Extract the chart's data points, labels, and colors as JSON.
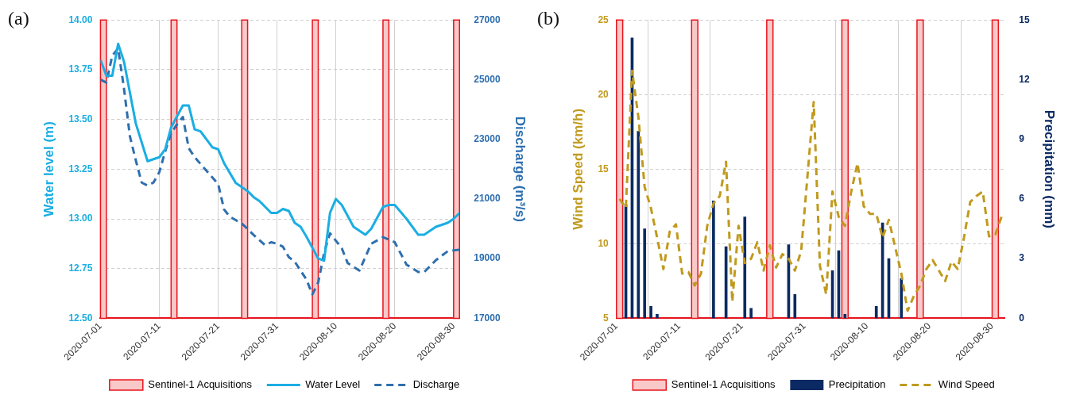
{
  "chart_data": [
    {
      "type": "line",
      "title": "(a)",
      "ylabel": "Water level (m)",
      "y2label": "Discharge (m³/s)",
      "xlim": [
        "2020-07-01",
        "2020-08-31"
      ],
      "xticks": [
        "2020-07-01",
        "2020-07-11",
        "2020-07-21",
        "2020-07-31",
        "2020-08-10",
        "2020-08-20",
        "2020-08-30"
      ],
      "ylim": [
        12.5,
        14
      ],
      "yticks": [
        {
          "value": 12.5,
          "label": "12.50"
        },
        12.75,
        {
          "value": 13,
          "label": "13.00"
        },
        13.25,
        {
          "value": 13.5,
          "label": "13.50"
        },
        13.75,
        {
          "value": 14,
          "label": "14.00"
        }
      ],
      "y2lim": [
        17000,
        27000
      ],
      "y2ticks": [
        17000,
        19000,
        21000,
        23000,
        25000,
        27000
      ],
      "grid": true,
      "legend": "bottom",
      "marker": "none",
      "bands": [
        {
          "axis": "x",
          "from": "2020-07-01",
          "to": "2020-07-02",
          "label": "Sentinel-1 Acquisitions",
          "color": "#f9c9c9"
        },
        {
          "axis": "x",
          "from": "2020-07-13",
          "to": "2020-07-14",
          "color": "#f9c9c9"
        },
        {
          "axis": "x",
          "from": "2020-07-25",
          "to": "2020-07-26",
          "color": "#f9c9c9"
        },
        {
          "axis": "x",
          "from": "2020-08-06",
          "to": "2020-08-07",
          "color": "#f9c9c9"
        },
        {
          "axis": "x",
          "from": "2020-08-18",
          "to": "2020-08-19",
          "color": "#f9c9c9"
        },
        {
          "axis": "x",
          "from": "2020-08-30",
          "to": "2020-08-31",
          "color": "#f9c9c9"
        }
      ],
      "series": [
        {
          "name": "Water Level",
          "color": "#1aaee3",
          "line_style": "solid",
          "x": [
            "2020-07-01",
            "2020-07-02",
            "2020-07-03",
            "2020-07-04",
            "2020-07-05",
            "2020-07-07",
            "2020-07-09",
            "2020-07-11",
            "2020-07-12",
            "2020-07-13",
            "2020-07-15",
            "2020-07-16",
            "2020-07-17",
            "2020-07-18",
            "2020-07-19",
            "2020-07-20",
            "2020-07-21",
            "2020-07-22",
            "2020-07-24",
            "2020-07-26",
            "2020-07-27",
            "2020-07-28",
            "2020-07-30",
            "2020-07-31",
            "2020-08-01",
            "2020-08-02",
            "2020-08-03",
            "2020-08-04",
            "2020-08-05",
            "2020-08-07",
            "2020-08-08",
            "2020-08-09",
            "2020-08-10",
            "2020-08-11",
            "2020-08-13",
            "2020-08-15",
            "2020-08-16",
            "2020-08-18",
            "2020-08-19",
            "2020-08-20",
            "2020-08-22",
            "2020-08-24",
            "2020-08-25",
            "2020-08-27",
            "2020-08-29",
            "2020-08-30",
            "2020-08-31"
          ],
          "values": [
            13.8,
            13.72,
            13.72,
            13.88,
            13.79,
            13.48,
            13.29,
            13.31,
            13.35,
            13.46,
            13.57,
            13.57,
            13.45,
            13.44,
            13.4,
            13.36,
            13.35,
            13.28,
            13.18,
            13.14,
            13.11,
            13.09,
            13.03,
            13.03,
            13.05,
            13.04,
            12.98,
            12.96,
            12.91,
            12.8,
            12.79,
            13.03,
            13.1,
            13.07,
            12.96,
            12.92,
            12.95,
            13.06,
            13.07,
            13.07,
            13,
            12.92,
            12.92,
            12.96,
            12.98,
            13,
            13.03
          ]
        },
        {
          "name": "Discharge",
          "color": "#2e6fae",
          "line_style": "dashed",
          "axis": "y2",
          "x": [
            "2020-07-01",
            "2020-07-02",
            "2020-07-03",
            "2020-07-04",
            "2020-07-05",
            "2020-07-06",
            "2020-07-07",
            "2020-07-08",
            "2020-07-09",
            "2020-07-10",
            "2020-07-11",
            "2020-07-12",
            "2020-07-13",
            "2020-07-14",
            "2020-07-15",
            "2020-07-16",
            "2020-07-17",
            "2020-07-19",
            "2020-07-21",
            "2020-07-22",
            "2020-07-23",
            "2020-07-25",
            "2020-07-27",
            "2020-07-29",
            "2020-07-30",
            "2020-07-31",
            "2020-08-01",
            "2020-08-02",
            "2020-08-03",
            "2020-08-05",
            "2020-08-06",
            "2020-08-07",
            "2020-08-08",
            "2020-08-09",
            "2020-08-11",
            "2020-08-12",
            "2020-08-14",
            "2020-08-16",
            "2020-08-18",
            "2020-08-20",
            "2020-08-22",
            "2020-08-24",
            "2020-08-25",
            "2020-08-27",
            "2020-08-29",
            "2020-08-31"
          ],
          "values": [
            25000,
            24900,
            25800,
            26050,
            24700,
            23100,
            22300,
            21550,
            21450,
            21550,
            21900,
            22600,
            23200,
            23500,
            23750,
            22700,
            22400,
            21950,
            21500,
            20650,
            20400,
            20180,
            19800,
            19450,
            19550,
            19500,
            19400,
            19050,
            18900,
            18300,
            17800,
            18200,
            19200,
            19850,
            19350,
            18850,
            18600,
            19500,
            19720,
            19550,
            18800,
            18550,
            18550,
            18950,
            19250,
            19300
          ]
        }
      ]
    },
    {
      "type": "line",
      "title": "(b)",
      "ylabel": "Wind Speed (km/h)",
      "y2label": "Precipitation (mm)",
      "xlim": [
        "2020-07-01",
        "2020-09-01"
      ],
      "xticks": [
        "2020-07-01",
        "2020-07-11",
        "2020-07-21",
        "2020-07-31",
        "2020-08-10",
        "2020-08-20",
        "2020-08-30"
      ],
      "ylim": [
        5,
        25
      ],
      "yticks": [
        5,
        10,
        15,
        20,
        25
      ],
      "y2lim": [
        0,
        15
      ],
      "y2ticks": [
        0,
        3,
        6,
        9,
        12,
        15
      ],
      "grid": true,
      "legend": "bottom",
      "marker": "none",
      "bands": [
        {
          "axis": "x",
          "from": "2020-07-01",
          "to": "2020-07-02",
          "label": "Sentinel-1 Acquisitions",
          "color": "#f9c9c9"
        },
        {
          "axis": "x",
          "from": "2020-07-13",
          "to": "2020-07-14",
          "color": "#f9c9c9"
        },
        {
          "axis": "x",
          "from": "2020-07-25",
          "to": "2020-07-26",
          "color": "#f9c9c9"
        },
        {
          "axis": "x",
          "from": "2020-08-06",
          "to": "2020-08-07",
          "color": "#f9c9c9"
        },
        {
          "axis": "x",
          "from": "2020-08-18",
          "to": "2020-08-19",
          "color": "#f9c9c9"
        },
        {
          "axis": "x",
          "from": "2020-08-30",
          "to": "2020-08-31",
          "color": "#f9c9c9"
        }
      ],
      "series": [
        {
          "name": "Precipitation",
          "type": "bar",
          "axis": "y2",
          "color": "#0b2a63",
          "x": [
            "2020-07-02T12:00",
            "2020-07-03T12:00",
            "2020-07-04T12:00",
            "2020-07-05T12:00",
            "2020-07-06T12:00",
            "2020-07-07T12:00",
            "2020-07-16T12:00",
            "2020-07-18T12:00",
            "2020-07-21T12:00",
            "2020-07-22T12:00",
            "2020-07-28T12:00",
            "2020-07-29T12:00",
            "2020-08-04T12:00",
            "2020-08-05T12:00",
            "2020-08-06T12:00",
            "2020-08-11T12:00",
            "2020-08-12T12:00",
            "2020-08-13T12:00",
            "2020-08-15T12:00"
          ],
          "values": [
            5.7,
            14.1,
            9.4,
            4.5,
            0.6,
            0.2,
            5.9,
            3.6,
            5.1,
            0.5,
            3.7,
            1.2,
            2.4,
            3.4,
            0.2,
            0.6,
            4.8,
            3,
            2
          ]
        },
        {
          "name": "Wind Speed",
          "type": "line",
          "color": "#c19a1d",
          "line_style": "dashed",
          "x": [
            "2020-07-01T12:00",
            "2020-07-02T12:00",
            "2020-07-03T12:00",
            "2020-07-04T12:00",
            "2020-07-05T12:00",
            "2020-07-06T12:00",
            "2020-07-07T12:00",
            "2020-07-08T12:00",
            "2020-07-09T12:00",
            "2020-07-10T12:00",
            "2020-07-11T12:00",
            "2020-07-12T12:00",
            "2020-07-13T12:00",
            "2020-07-14T12:00",
            "2020-07-15T12:00",
            "2020-07-16T12:00",
            "2020-07-17T12:00",
            "2020-07-18T12:00",
            "2020-07-19T12:00",
            "2020-07-20T12:00",
            "2020-07-21T12:00",
            "2020-07-22T12:00",
            "2020-07-23T12:00",
            "2020-07-24T12:00",
            "2020-07-25T12:00",
            "2020-07-26T12:00",
            "2020-07-27T12:00",
            "2020-07-28T12:00",
            "2020-07-29T12:00",
            "2020-07-30T12:00",
            "2020-07-31T12:00",
            "2020-08-01T12:00",
            "2020-08-02T12:00",
            "2020-08-03T12:00",
            "2020-08-04T12:00",
            "2020-08-05T12:00",
            "2020-08-06T12:00",
            "2020-08-07T12:00",
            "2020-08-08T12:00",
            "2020-08-09T12:00",
            "2020-08-10T12:00",
            "2020-08-11T12:00",
            "2020-08-12T12:00",
            "2020-08-13T12:00",
            "2020-08-14T12:00",
            "2020-08-15T12:00",
            "2020-08-16T12:00",
            "2020-08-17T12:00",
            "2020-08-18T12:00",
            "2020-08-19T12:00",
            "2020-08-20T12:00",
            "2020-08-21T12:00",
            "2020-08-22T12:00",
            "2020-08-23T12:00",
            "2020-08-24T12:00",
            "2020-08-25T12:00",
            "2020-08-26T12:00",
            "2020-08-27T12:00",
            "2020-08-28T12:00",
            "2020-08-29T12:00",
            "2020-08-30T12:00",
            "2020-08-31T12:00"
          ],
          "values": [
            13,
            12.4,
            21.6,
            18.5,
            13.8,
            12.4,
            10.4,
            8.3,
            10.8,
            11.3,
            8,
            8.1,
            7.2,
            8,
            11.2,
            12.7,
            13.2,
            15.5,
            6.1,
            11.2,
            8.7,
            9,
            10.1,
            8.2,
            9.9,
            8.4,
            9.3,
            9,
            8.2,
            9.5,
            14.5,
            19.5,
            8.5,
            6.6,
            13.5,
            11.8,
            11.2,
            13.5,
            15.4,
            12.5,
            12,
            12,
            10.4,
            11.6,
            9.8,
            8,
            5.5,
            6.5,
            7.2,
            8.3,
            8.9,
            8.2,
            7.5,
            8.8,
            8.3,
            10.4,
            12.8,
            13.2,
            13.5,
            10.5,
            10.6,
            11.8
          ]
        }
      ]
    }
  ]
}
